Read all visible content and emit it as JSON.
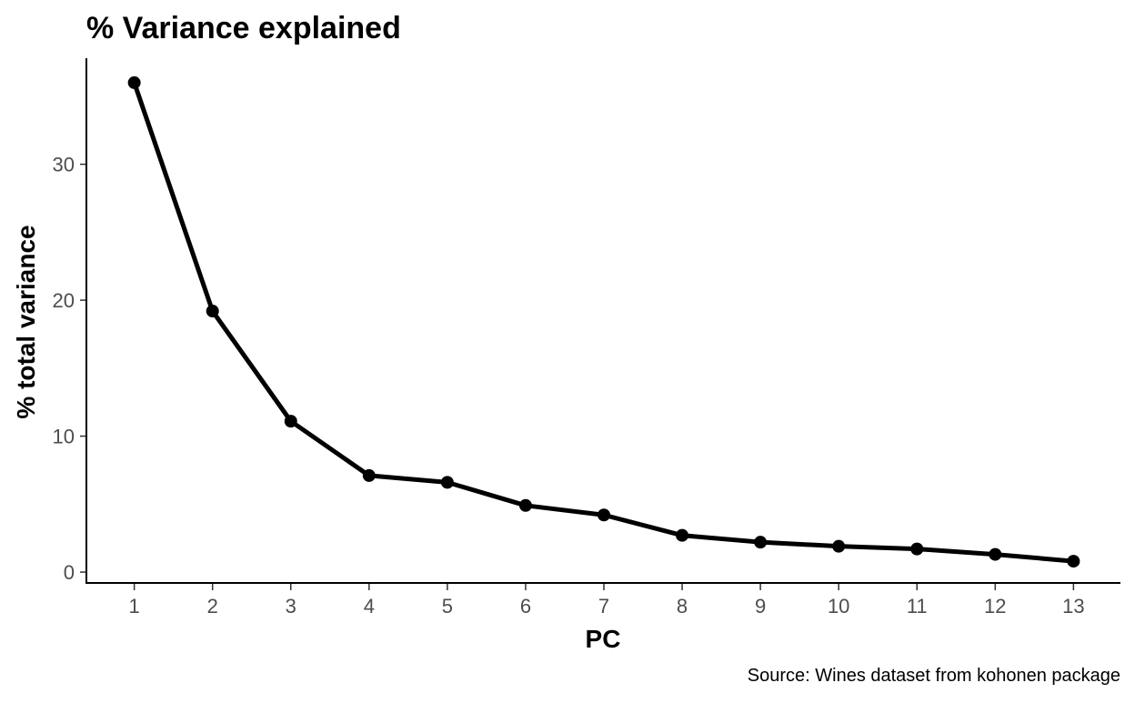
{
  "chart_data": {
    "type": "line",
    "title": "% Variance explained",
    "xlabel": "PC",
    "ylabel": "% total variance",
    "caption": "Source: Wines dataset from kohonen package",
    "x": [
      1,
      2,
      3,
      4,
      5,
      6,
      7,
      8,
      9,
      10,
      11,
      12,
      13
    ],
    "series": [
      {
        "values": [
          36.0,
          19.2,
          11.1,
          7.1,
          6.6,
          4.9,
          4.2,
          2.7,
          2.2,
          1.9,
          1.7,
          1.3,
          0.8
        ]
      }
    ],
    "xticks": [
      "1",
      "2",
      "3",
      "4",
      "5",
      "6",
      "7",
      "8",
      "9",
      "10",
      "11",
      "12",
      "13"
    ],
    "yticks": [
      "0",
      "10",
      "20",
      "30"
    ],
    "ytick_values": [
      0,
      10,
      20,
      30
    ],
    "xlim": [
      0.4,
      13.6
    ],
    "ylim": [
      -0.8,
      37.8
    ],
    "grid": false,
    "legend": "none",
    "line_color": "#000000"
  }
}
